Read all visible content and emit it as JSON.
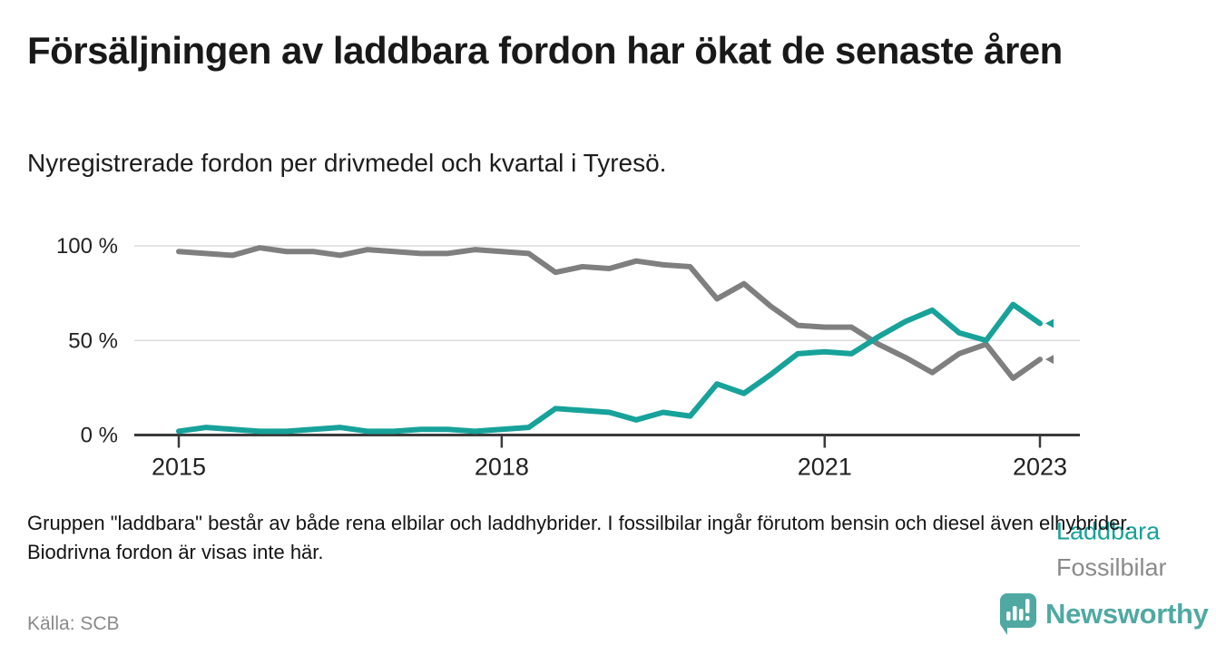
{
  "header": {
    "title": "Försäljningen av laddbara fordon har ökat de senaste åren",
    "subtitle": "Nyregistrerade fordon per drivmedel och kvartal i Tyresö."
  },
  "chart_data": {
    "type": "line",
    "x_quarters": [
      "2015 Q1",
      "2015 Q2",
      "2015 Q3",
      "2015 Q4",
      "2016 Q1",
      "2016 Q2",
      "2016 Q3",
      "2016 Q4",
      "2017 Q1",
      "2017 Q2",
      "2017 Q3",
      "2017 Q4",
      "2018 Q1",
      "2018 Q2",
      "2018 Q3",
      "2018 Q4",
      "2019 Q1",
      "2019 Q2",
      "2019 Q3",
      "2019 Q4",
      "2020 Q1",
      "2020 Q2",
      "2020 Q3",
      "2020 Q4",
      "2021 Q1",
      "2021 Q2",
      "2021 Q3",
      "2021 Q4",
      "2022 Q1",
      "2022 Q2",
      "2022 Q3",
      "2022 Q4",
      "2023 Q1"
    ],
    "series": [
      {
        "name": "Laddbara",
        "color": "#17a29a",
        "values": [
          2,
          4,
          3,
          2,
          2,
          3,
          4,
          2,
          2,
          3,
          3,
          2,
          3,
          4,
          14,
          13,
          12,
          8,
          12,
          10,
          27,
          22,
          32,
          43,
          44,
          43,
          52,
          60,
          66,
          54,
          50,
          69,
          59
        ]
      },
      {
        "name": "Fossilbilar",
        "color": "#7f7f7f",
        "values": [
          97,
          96,
          95,
          99,
          97,
          97,
          95,
          98,
          97,
          96,
          96,
          98,
          97,
          96,
          86,
          89,
          88,
          92,
          90,
          89,
          72,
          80,
          68,
          58,
          57,
          57,
          48,
          41,
          33,
          43,
          48,
          30,
          40
        ]
      }
    ],
    "y_ticks": [
      {
        "value": 100,
        "label": "100 %"
      },
      {
        "value": 50,
        "label": "50 %"
      },
      {
        "value": 0,
        "label": "0 %"
      }
    ],
    "x_ticks": [
      {
        "index": 0,
        "label": "2015"
      },
      {
        "index": 12,
        "label": "2018"
      },
      {
        "index": 24,
        "label": "2021"
      },
      {
        "index": 32,
        "label": "2023"
      }
    ],
    "ylim": [
      0,
      100
    ],
    "unit": "%",
    "grid": "horizontal",
    "legend_position": "right-end-labels"
  },
  "footer": {
    "note": "Gruppen \"laddbara\" består av både rena elbilar och laddhybrider. I fossilbilar ingår förutom bensin och diesel även elhybrider. Biodrivna fordon är visas inte här.",
    "source": "Källa: SCB"
  },
  "brand": {
    "name": "Newsworthy",
    "logo_icon": "speech-bubble-bar-chart-icon",
    "color": "#4fa9a2"
  },
  "colors": {
    "laddbara": "#17a29a",
    "fossilbilar": "#7f7f7f",
    "legend_fossil_text": "#8a8a8a",
    "axis": "#3a3a3a",
    "gridline": "#dcdcdc",
    "tick_text": "#222222",
    "title_text": "#191919",
    "background": "#ffffff"
  }
}
